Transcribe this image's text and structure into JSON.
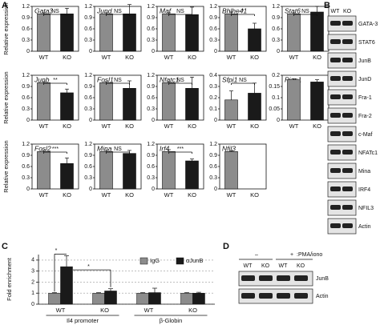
{
  "panel_labels": [
    "A",
    "B",
    "C",
    "D"
  ],
  "chart_data": [
    {
      "type": "bar",
      "title": "Gata3",
      "y_label": "Relative expression",
      "categories": [
        "WT",
        "KO"
      ],
      "values": [
        1.0,
        1.0
      ],
      "errors": [
        0.03,
        0.15
      ],
      "significance": "NS",
      "colors": [
        "#8c8c8c",
        "#1a1a1a"
      ],
      "ylim": [
        0,
        1.2
      ],
      "yticks": [
        0,
        0.3,
        0.6,
        0.9,
        1.2
      ]
    },
    {
      "type": "bar",
      "title": "Jund",
      "categories": [
        "WT",
        "KO"
      ],
      "values": [
        1.0,
        1.0
      ],
      "errors": [
        0.03,
        0.25
      ],
      "significance": "NS",
      "colors": [
        "#8c8c8c",
        "#1a1a1a"
      ],
      "ylim": [
        0,
        1.2
      ],
      "yticks": [
        0,
        0.3,
        0.6,
        0.9,
        1.2
      ]
    },
    {
      "type": "bar",
      "title": "Maf",
      "categories": [
        "WT",
        "KO"
      ],
      "values": [
        1.0,
        0.98
      ],
      "errors": [
        0.03,
        0.2
      ],
      "significance": "NS",
      "colors": [
        "#8c8c8c",
        "#1a1a1a"
      ],
      "ylim": [
        0,
        1.2
      ],
      "yticks": [
        0,
        0.3,
        0.6,
        0.9,
        1.2
      ]
    },
    {
      "type": "bar",
      "title": "Bhlhe41",
      "categories": [
        "WT",
        "KO"
      ],
      "values": [
        1.0,
        0.6
      ],
      "errors": [
        0.05,
        0.15
      ],
      "significance": "*",
      "colors": [
        "#8c8c8c",
        "#1a1a1a"
      ],
      "ylim": [
        0,
        1.2
      ],
      "yticks": [
        0,
        0.3,
        0.6,
        0.9,
        1.2
      ]
    },
    {
      "type": "bar",
      "title": "Stat6",
      "categories": [
        "WT",
        "KO"
      ],
      "values": [
        1.0,
        1.05
      ],
      "errors": [
        0.03,
        0.15
      ],
      "significance": "NS",
      "colors": [
        "#8c8c8c",
        "#1a1a1a"
      ],
      "ylim": [
        0,
        1.2
      ],
      "yticks": [
        0,
        0.3,
        0.6,
        0.9,
        1.2
      ]
    },
    {
      "type": "bar",
      "title": "Junb",
      "y_label": "Relative expression",
      "categories": [
        "WT",
        "KO"
      ],
      "values": [
        1.0,
        0.73
      ],
      "errors": [
        0.03,
        0.1
      ],
      "significance": "**",
      "colors": [
        "#8c8c8c",
        "#1a1a1a"
      ],
      "ylim": [
        0,
        1.2
      ],
      "yticks": [
        0,
        0.3,
        0.6,
        0.9,
        1.2
      ]
    },
    {
      "type": "bar",
      "title": "Fosl1",
      "categories": [
        "WT",
        "KO"
      ],
      "values": [
        1.0,
        0.85
      ],
      "errors": [
        0.03,
        0.2
      ],
      "significance": "NS",
      "colors": [
        "#8c8c8c",
        "#1a1a1a"
      ],
      "ylim": [
        0,
        1.2
      ],
      "yticks": [
        0,
        0.3,
        0.6,
        0.9,
        1.2
      ]
    },
    {
      "type": "bar",
      "title": "Nfatc1",
      "categories": [
        "WT",
        "KO"
      ],
      "values": [
        1.0,
        0.85
      ],
      "errors": [
        0.03,
        0.3
      ],
      "significance": "NS",
      "colors": [
        "#8c8c8c",
        "#1a1a1a"
      ],
      "ylim": [
        0,
        1.2
      ],
      "yticks": [
        0,
        0.3,
        0.6,
        0.9,
        1.2
      ]
    },
    {
      "type": "bar",
      "title": "Sfpi1",
      "categories": [
        "WT",
        "KO"
      ],
      "values": [
        0.18,
        0.24
      ],
      "errors": [
        0.08,
        0.09
      ],
      "significance": "NS",
      "colors": [
        "#8c8c8c",
        "#1a1a1a"
      ],
      "ylim": [
        0,
        0.4
      ],
      "yticks": [
        0,
        0.1,
        0.2,
        0.3,
        0.4
      ]
    },
    {
      "type": "bar",
      "title": "Pias1",
      "categories": [
        "WT",
        "KO"
      ],
      "values": [
        0.18,
        0.17
      ],
      "errors": [
        0.005,
        0.01
      ],
      "colors": [
        "#8c8c8c",
        "#1a1a1a"
      ],
      "ylim": [
        0,
        0.2
      ],
      "yticks": [
        0,
        0.05,
        0.1,
        0.15,
        0.2
      ]
    },
    {
      "type": "bar",
      "title": "Fosl2",
      "y_label": "Relative expression",
      "categories": [
        "WT",
        "KO"
      ],
      "values": [
        1.0,
        0.68
      ],
      "errors": [
        0.03,
        0.15
      ],
      "significance": "***",
      "colors": [
        "#8c8c8c",
        "#1a1a1a"
      ],
      "ylim": [
        0,
        1.2
      ],
      "yticks": [
        0,
        0.3,
        0.6,
        0.9,
        1.2
      ]
    },
    {
      "type": "bar",
      "title": "Mina",
      "categories": [
        "WT",
        "KO"
      ],
      "values": [
        1.0,
        0.95
      ],
      "errors": [
        0.03,
        0.08
      ],
      "significance": "NS",
      "colors": [
        "#8c8c8c",
        "#1a1a1a"
      ],
      "ylim": [
        0,
        1.2
      ],
      "yticks": [
        0,
        0.3,
        0.6,
        0.9,
        1.2
      ]
    },
    {
      "type": "bar",
      "title": "Irf4",
      "categories": [
        "WT",
        "KO"
      ],
      "values": [
        1.0,
        0.75
      ],
      "errors": [
        0.05,
        0.05
      ],
      "significance": "***",
      "colors": [
        "#8c8c8c",
        "#1a1a1a"
      ],
      "ylim": [
        0,
        1.2
      ],
      "yticks": [
        0,
        0.3,
        0.6,
        0.9,
        1.2
      ]
    },
    {
      "type": "bar",
      "title": "Nfil3",
      "categories": [
        "WT",
        "KO"
      ],
      "values": [
        1.0,
        null
      ],
      "errors": [
        0.02,
        null
      ],
      "colors": [
        "#8c8c8c",
        "#1a1a1a"
      ],
      "ylim": [
        0,
        1.2
      ],
      "yticks": [
        0,
        0.3,
        0.6,
        0.9,
        1.2
      ]
    },
    {
      "type": "grouped_bar",
      "y_label": "Fold enrichment",
      "categories": [
        "WT",
        "KO",
        "WT",
        "KO"
      ],
      "group_labels": [
        "Il4 promoter",
        "β-Globin"
      ],
      "series": [
        {
          "name": "IgG",
          "color": "#8c8c8c",
          "values": [
            1.0,
            1.0,
            1.0,
            1.0
          ],
          "errors": [
            0.05,
            0.05,
            0.05,
            0.05
          ]
        },
        {
          "name": "αJunB",
          "color": "#1a1a1a",
          "values": [
            3.4,
            1.2,
            1.05,
            1.0
          ],
          "errors": [
            1.0,
            0.2,
            0.4,
            0.08
          ]
        }
      ],
      "significance": [
        "*",
        "*"
      ],
      "grid": true,
      "ylim": [
        0,
        4.5
      ],
      "yticks": [
        0,
        1,
        2,
        3,
        4
      ]
    }
  ],
  "blot_b": {
    "lanes": [
      "WT",
      "KO"
    ],
    "rows": [
      "GATA-3",
      "STAT6",
      "JunB",
      "JunD",
      "Fra-1",
      "Fra-2",
      "c-Maf",
      "NFATc1",
      "Mina",
      "IRF4",
      "NFIL3",
      "Actin"
    ]
  },
  "blot_d": {
    "treatments": [
      "–",
      "+"
    ],
    "treatment_label": ":PMA/iono",
    "lanes": [
      "WT",
      "KO",
      "WT",
      "KO"
    ],
    "rows": [
      "JunB",
      "Actin"
    ]
  }
}
